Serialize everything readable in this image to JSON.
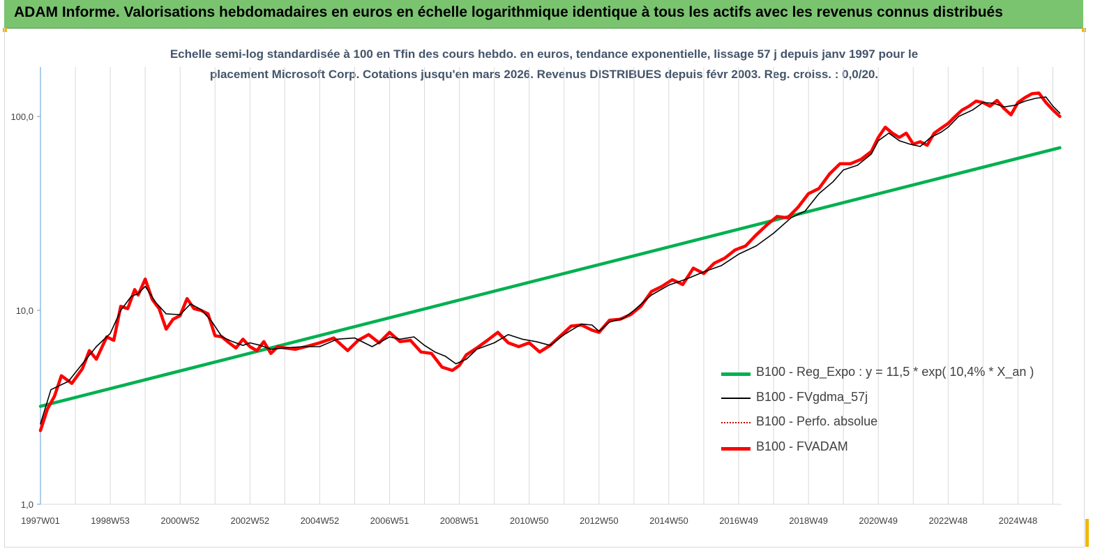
{
  "header": {
    "title": "ADAM Informe. Valorisations hebdomadaires en euros en échelle logarithmique identique à tous les actifs avec les revenus connus distribués"
  },
  "chart_data": {
    "type": "line",
    "subtitle_line1": "Echelle semi-log standardisée à 100 en Tfin des cours hebdo. en euros, tendance exponentielle, lissage 57 j depuis janv 1997 pour le",
    "subtitle_line2": "placement Microsoft Corp. Cotations jusqu'en mars 2026. Revenus DISTRIBUES depuis févr 2003. Reg. croiss. : 0,0/20.",
    "y_scale": "log",
    "ylim": [
      1,
      180
    ],
    "y_ticks": [
      "1,0",
      "10,0",
      "100,0"
    ],
    "y_tick_values": [
      1,
      10,
      100
    ],
    "x_ticks": [
      "1997W01",
      "1998W53",
      "2000W52",
      "2002W52",
      "2004W52",
      "2006W51",
      "2008W51",
      "2010W50",
      "2012W50",
      "2014W50",
      "2016W49",
      "2018W49",
      "2020W49",
      "2022W48",
      "2024W48"
    ],
    "x_tick_years": [
      1997.0,
      1999.0,
      2001.0,
      2003.0,
      2005.0,
      2007.0,
      2009.0,
      2011.0,
      2013.0,
      2015.0,
      2017.0,
      2019.0,
      2021.0,
      2023.0,
      2025.0
    ],
    "xlim": [
      1997.0,
      2026.25
    ],
    "grid": "vertical",
    "legend_position": "bottom-right",
    "series": [
      {
        "name": "B100 - Reg_Expo : y = 11,5 * exp( 10,4% *  X_an )",
        "color": "#00b050",
        "style": "solid-thick",
        "x": [
          1997.0,
          2026.2
        ],
        "values": [
          3.2,
          69.0
        ]
      },
      {
        "name": "B100 - FVgdma_57j",
        "color": "#000000",
        "style": "solid-thin",
        "x": [
          1997.0,
          1997.3,
          1997.8,
          1998.2,
          1998.6,
          1999.0,
          1999.3,
          1999.6,
          1999.8,
          2000.0,
          2000.3,
          2000.6,
          2001.0,
          2001.3,
          2001.6,
          2001.9,
          2002.2,
          2002.5,
          2002.8,
          2003.0,
          2003.3,
          2003.6,
          2004.0,
          2004.5,
          2005.0,
          2005.5,
          2006.0,
          2006.5,
          2007.0,
          2007.3,
          2007.7,
          2008.0,
          2008.3,
          2008.6,
          2008.9,
          2009.2,
          2009.5,
          2010.0,
          2010.4,
          2010.8,
          2011.2,
          2011.6,
          2012.0,
          2012.5,
          2012.8,
          2013.0,
          2013.3,
          2013.7,
          2014.0,
          2014.5,
          2015.0,
          2015.5,
          2016.0,
          2016.5,
          2017.0,
          2017.5,
          2018.0,
          2018.5,
          2018.9,
          2019.3,
          2019.7,
          2020.0,
          2020.4,
          2020.8,
          2021.0,
          2021.3,
          2021.6,
          2021.9,
          2022.2,
          2022.5,
          2022.8,
          2023.0,
          2023.3,
          2023.7,
          2024.0,
          2024.3,
          2024.6,
          2024.9,
          2025.2,
          2025.5,
          2025.8,
          2026.0,
          2026.2
        ],
        "values": [
          2.6,
          3.9,
          4.3,
          5.3,
          6.5,
          7.6,
          10.0,
          11.8,
          12.2,
          13.3,
          11.0,
          9.6,
          9.5,
          10.8,
          10.1,
          8.8,
          7.3,
          6.9,
          6.6,
          6.8,
          6.6,
          6.3,
          6.4,
          6.5,
          6.5,
          7.1,
          7.2,
          6.5,
          7.3,
          7.1,
          7.3,
          6.6,
          6.1,
          5.8,
          5.3,
          5.6,
          6.3,
          6.8,
          7.5,
          7.1,
          6.9,
          6.6,
          7.5,
          8.5,
          8.4,
          7.8,
          8.7,
          9.1,
          10.0,
          12.0,
          13.5,
          14.5,
          15.8,
          17.0,
          19.5,
          21.5,
          25.0,
          30.0,
          32.5,
          40.0,
          46.0,
          53.0,
          56.0,
          64.0,
          75.0,
          82.0,
          75.0,
          72.0,
          70.0,
          78.0,
          83.0,
          88.0,
          100.0,
          108.0,
          118.0,
          117.0,
          112.0,
          114.0,
          120.0,
          124.0,
          126.0,
          113.0,
          104.0
        ]
      },
      {
        "name": "B100 - Perfo. absolue",
        "color": "#c00000",
        "style": "dotted",
        "x": [],
        "values": []
      },
      {
        "name": "B100 - FVADAM",
        "color": "#ff0000",
        "style": "solid-thick",
        "x": [
          1997.0,
          1997.2,
          1997.4,
          1997.6,
          1997.9,
          1998.2,
          1998.4,
          1998.6,
          1998.9,
          1999.1,
          1999.3,
          1999.5,
          1999.7,
          1999.8,
          2000.0,
          2000.2,
          2000.4,
          2000.6,
          2000.8,
          2001.0,
          2001.2,
          2001.4,
          2001.6,
          2001.8,
          2002.0,
          2002.2,
          2002.4,
          2002.6,
          2002.8,
          2003.0,
          2003.2,
          2003.4,
          2003.6,
          2003.8,
          2004.0,
          2004.3,
          2004.6,
          2005.0,
          2005.4,
          2005.8,
          2006.1,
          2006.4,
          2006.7,
          2007.0,
          2007.3,
          2007.6,
          2007.9,
          2008.2,
          2008.5,
          2008.8,
          2009.0,
          2009.2,
          2009.5,
          2009.8,
          2010.1,
          2010.4,
          2010.7,
          2011.0,
          2011.3,
          2011.6,
          2011.9,
          2012.2,
          2012.5,
          2012.8,
          2013.0,
          2013.3,
          2013.6,
          2013.9,
          2014.2,
          2014.5,
          2014.8,
          2015.1,
          2015.4,
          2015.7,
          2016.0,
          2016.3,
          2016.6,
          2016.9,
          2017.2,
          2017.5,
          2017.8,
          2018.1,
          2018.4,
          2018.7,
          2019.0,
          2019.3,
          2019.6,
          2019.9,
          2020.2,
          2020.5,
          2020.8,
          2021.0,
          2021.2,
          2021.4,
          2021.6,
          2021.8,
          2022.0,
          2022.2,
          2022.4,
          2022.6,
          2022.8,
          2023.0,
          2023.2,
          2023.4,
          2023.6,
          2023.8,
          2024.0,
          2024.2,
          2024.4,
          2024.6,
          2024.8,
          2025.0,
          2025.2,
          2025.4,
          2025.6,
          2025.8,
          2026.0,
          2026.2
        ],
        "values": [
          2.4,
          3.1,
          3.6,
          4.6,
          4.2,
          5.0,
          6.2,
          5.6,
          7.3,
          7.0,
          10.5,
          10.2,
          12.8,
          12.0,
          14.5,
          11.4,
          10.2,
          8.0,
          9.0,
          9.4,
          11.5,
          10.2,
          10.0,
          9.6,
          7.4,
          7.3,
          6.8,
          6.4,
          7.1,
          6.5,
          6.2,
          6.9,
          6.0,
          6.5,
          6.4,
          6.3,
          6.5,
          6.8,
          7.2,
          6.2,
          7.0,
          7.5,
          6.8,
          7.7,
          6.9,
          7.0,
          6.1,
          6.0,
          5.1,
          4.9,
          5.2,
          5.9,
          6.4,
          7.0,
          7.7,
          6.8,
          6.5,
          6.8,
          6.1,
          6.6,
          7.4,
          8.3,
          8.4,
          7.9,
          7.7,
          8.9,
          9.0,
          9.5,
          10.5,
          12.5,
          13.3,
          14.4,
          13.6,
          16.5,
          15.5,
          17.5,
          18.6,
          20.5,
          21.5,
          24.5,
          27.5,
          30.5,
          30.0,
          34.0,
          40.0,
          42.5,
          50.5,
          57.0,
          57.0,
          60.0,
          66.0,
          78.0,
          88.0,
          82.0,
          78.0,
          82.0,
          72.0,
          74.0,
          71.0,
          82.0,
          87.0,
          92.0,
          100.0,
          108.0,
          113.0,
          120.0,
          118.0,
          113.0,
          121.0,
          110.0,
          102.0,
          118.0,
          125.0,
          131.0,
          132.0,
          118.0,
          108.0,
          100.0
        ]
      }
    ]
  }
}
